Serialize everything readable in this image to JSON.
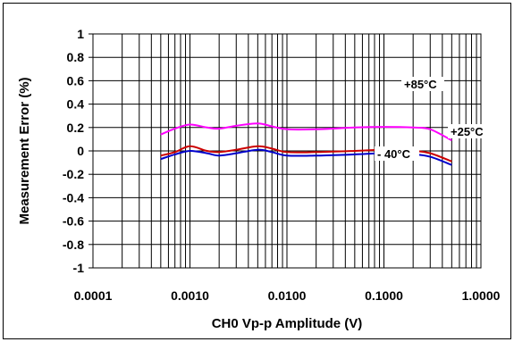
{
  "chart_data": {
    "type": "line",
    "xlabel": "CH0 Vp-p Amplitude (V)",
    "ylabel": "Measurement Error (%)",
    "x_scale": "log",
    "xlim": [
      0.0001,
      1.0
    ],
    "ylim": [
      -1,
      1
    ],
    "x_ticks": [
      {
        "value": 0.0001,
        "label": "0.0001"
      },
      {
        "value": 0.001,
        "label": "0.0010"
      },
      {
        "value": 0.01,
        "label": "0.0100"
      },
      {
        "value": 0.1,
        "label": "0.1000"
      },
      {
        "value": 1.0,
        "label": "1.0000"
      }
    ],
    "y_ticks": [
      {
        "value": 1,
        "label": "1"
      },
      {
        "value": 0.8,
        "label": "0.8"
      },
      {
        "value": 0.6,
        "label": "0.6"
      },
      {
        "value": 0.4,
        "label": "0.4"
      },
      {
        "value": 0.2,
        "label": "0.2"
      },
      {
        "value": 0,
        "label": "0"
      },
      {
        "value": -0.2,
        "label": "-0.2"
      },
      {
        "value": -0.4,
        "label": "-0.4"
      },
      {
        "value": -0.6,
        "label": "-0.6"
      },
      {
        "value": -0.8,
        "label": "-0.8"
      },
      {
        "value": -1,
        "label": "-1"
      }
    ],
    "grid": {
      "horizontal": true,
      "vertical_minor_log": true
    },
    "series": [
      {
        "name": "+85°C",
        "color": "#ff00ff",
        "points": [
          [
            0.0005,
            0.14
          ],
          [
            0.0007,
            0.19
          ],
          [
            0.001,
            0.225
          ],
          [
            0.0015,
            0.2
          ],
          [
            0.002,
            0.19
          ],
          [
            0.003,
            0.215
          ],
          [
            0.005,
            0.235
          ],
          [
            0.007,
            0.21
          ],
          [
            0.01,
            0.185
          ],
          [
            0.02,
            0.185
          ],
          [
            0.05,
            0.2
          ],
          [
            0.1,
            0.205
          ],
          [
            0.2,
            0.2
          ],
          [
            0.3,
            0.185
          ],
          [
            0.5,
            0.09
          ]
        ]
      },
      {
        "name": "+25°C",
        "color": "#cc0000",
        "points": [
          [
            0.0005,
            -0.04
          ],
          [
            0.0007,
            -0.01
          ],
          [
            0.001,
            0.04
          ],
          [
            0.0015,
            0.0
          ],
          [
            0.002,
            -0.01
          ],
          [
            0.003,
            0.01
          ],
          [
            0.005,
            0.04
          ],
          [
            0.007,
            0.02
          ],
          [
            0.01,
            -0.01
          ],
          [
            0.02,
            -0.01
          ],
          [
            0.05,
            0.0
          ],
          [
            0.1,
            0.01
          ],
          [
            0.2,
            0.0
          ],
          [
            0.3,
            -0.02
          ],
          [
            0.5,
            -0.09
          ]
        ]
      },
      {
        "name": "- 40°C",
        "color": "#0000cc",
        "points": [
          [
            0.0005,
            -0.07
          ],
          [
            0.0007,
            -0.03
          ],
          [
            0.001,
            0.0
          ],
          [
            0.0015,
            -0.02
          ],
          [
            0.002,
            -0.04
          ],
          [
            0.003,
            -0.02
          ],
          [
            0.005,
            0.01
          ],
          [
            0.007,
            -0.01
          ],
          [
            0.01,
            -0.04
          ],
          [
            0.02,
            -0.04
          ],
          [
            0.05,
            -0.03
          ],
          [
            0.1,
            -0.02
          ],
          [
            0.2,
            -0.03
          ],
          [
            0.3,
            -0.05
          ],
          [
            0.5,
            -0.12
          ]
        ]
      }
    ],
    "annotations": [
      {
        "text": "+85°C",
        "series": "+85°C"
      },
      {
        "text": "+25°C",
        "series": "+25°C"
      },
      {
        "text": "- 40°C",
        "series": "- 40°C"
      }
    ]
  }
}
